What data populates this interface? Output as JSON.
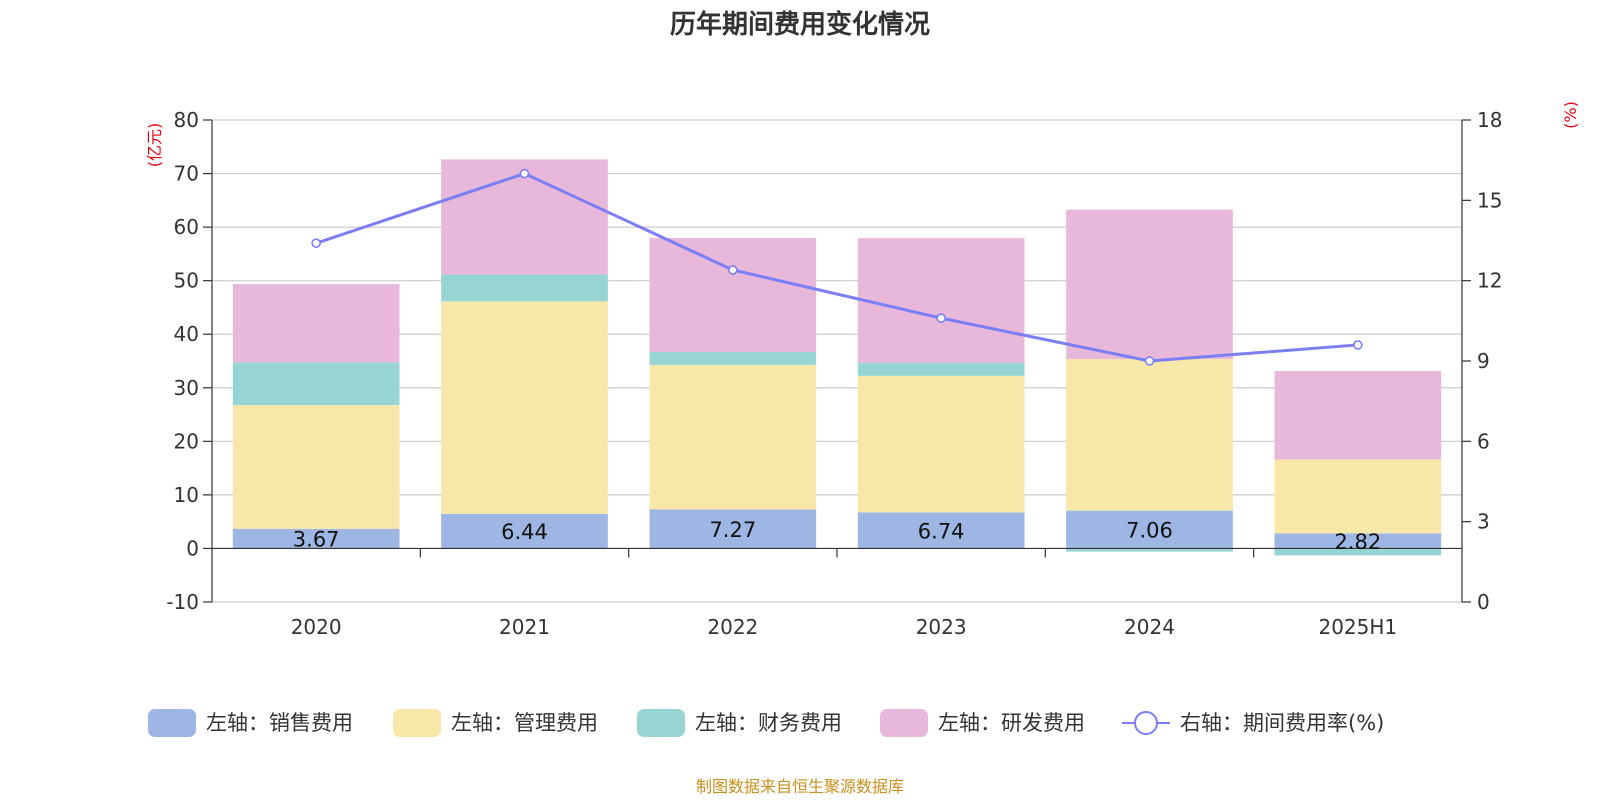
{
  "chart_data": {
    "type": "bar",
    "stacked": true,
    "title": "历年期间费用变化情况",
    "categories": [
      "2020",
      "2021",
      "2022",
      "2023",
      "2024",
      "2025H1"
    ],
    "left_axis": {
      "unit_label": "(亿元)",
      "ylim": [
        -10,
        80
      ],
      "ticks": [
        -10,
        0,
        10,
        20,
        30,
        40,
        50,
        60,
        70,
        80
      ]
    },
    "right_axis": {
      "unit_label": "(%)",
      "ylim": [
        0,
        18
      ],
      "ticks": [
        0,
        3,
        6,
        9,
        12,
        15,
        18
      ]
    },
    "series": [
      {
        "name": "左轴：销售费用",
        "color": "#9db6e3",
        "axis": "left",
        "kind": "bar",
        "values": [
          3.67,
          6.44,
          7.27,
          6.74,
          7.06,
          2.82
        ],
        "show_labels": true
      },
      {
        "name": "左轴：管理费用",
        "color": "#f7e7a8",
        "axis": "left",
        "kind": "bar",
        "values": [
          23.1,
          39.7,
          27.0,
          25.5,
          28.3,
          13.8
        ]
      },
      {
        "name": "左轴：财务费用",
        "color": "#97d4d4",
        "axis": "left",
        "kind": "bar",
        "values": [
          8.0,
          5.0,
          2.4,
          2.4,
          -0.6,
          -1.3
        ]
      },
      {
        "name": "左轴：研发费用",
        "color": "#e7b8da",
        "axis": "left",
        "kind": "bar",
        "values": [
          14.6,
          21.5,
          21.3,
          23.3,
          27.9,
          16.5
        ]
      },
      {
        "name": "右轴：期间费用率(%)",
        "color": "#7b7ef5",
        "axis": "right",
        "kind": "line",
        "values": [
          13.4,
          16.0,
          12.4,
          10.6,
          9.0,
          9.6
        ]
      }
    ],
    "grid": true,
    "legend_position": "bottom"
  },
  "source": "制图数据来自恒生聚源数据库"
}
